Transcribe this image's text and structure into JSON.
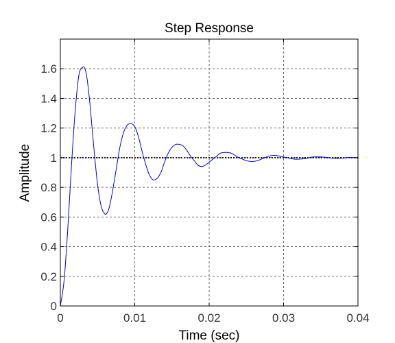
{
  "chart_data": {
    "type": "line",
    "title": "Step Response",
    "xlabel": "Time (sec)",
    "ylabel": "Amplitude",
    "xlim": [
      0,
      0.04
    ],
    "ylim": [
      0,
      1.8
    ],
    "x_ticks": [
      0,
      0.01,
      0.02,
      0.03,
      0.04
    ],
    "x_tick_labels": [
      "0",
      "0.01",
      "0.02",
      "0.03",
      "0.04"
    ],
    "y_ticks": [
      0,
      0.2,
      0.4,
      0.6,
      0.8,
      1.0,
      1.2,
      1.4,
      1.6
    ],
    "y_tick_labels": [
      "0",
      "0.2",
      "0.4",
      "0.6",
      "0.8",
      "1",
      "1.2",
      "1.4",
      "1.6"
    ],
    "grid": true,
    "grid_style": "dashed",
    "series": [
      {
        "color": "#0000cc",
        "style": "solid",
        "x": [
          0,
          0.0005,
          0.001,
          0.0015,
          0.002,
          0.0025,
          0.003,
          0.0033,
          0.0036,
          0.004,
          0.0045,
          0.005,
          0.0055,
          0.006,
          0.0063,
          0.0066,
          0.007,
          0.0075,
          0.008,
          0.0085,
          0.009,
          0.0095,
          0.01,
          0.0105,
          0.011,
          0.0115,
          0.012,
          0.0125,
          0.013,
          0.0133,
          0.0136,
          0.014,
          0.0145,
          0.015,
          0.0155,
          0.016,
          0.0165,
          0.017,
          0.0175,
          0.018,
          0.0185,
          0.019,
          0.0195,
          0.02,
          0.0205,
          0.021,
          0.0215,
          0.022,
          0.0225,
          0.023,
          0.0235,
          0.024,
          0.0245,
          0.025,
          0.0255,
          0.026,
          0.0265,
          0.027,
          0.0275,
          0.028,
          0.0285,
          0.029,
          0.0295,
          0.03,
          0.0305,
          0.031,
          0.0315,
          0.032,
          0.033,
          0.034,
          0.035,
          0.036,
          0.037,
          0.038,
          0.039,
          0.04
        ],
        "y": [
          0,
          0.17,
          0.52,
          0.95,
          1.32,
          1.56,
          1.61,
          1.6,
          1.53,
          1.35,
          1.07,
          0.82,
          0.67,
          0.62,
          0.63,
          0.67,
          0.77,
          0.92,
          1.07,
          1.17,
          1.22,
          1.23,
          1.21,
          1.14,
          1.04,
          0.95,
          0.88,
          0.85,
          0.86,
          0.88,
          0.91,
          0.97,
          1.03,
          1.07,
          1.09,
          1.09,
          1.08,
          1.05,
          1.01,
          0.98,
          0.95,
          0.94,
          0.95,
          0.97,
          0.99,
          1.01,
          1.03,
          1.035,
          1.035,
          1.03,
          1.015,
          1.0,
          0.99,
          0.98,
          0.975,
          0.975,
          0.98,
          0.99,
          1.0,
          1.01,
          1.015,
          1.015,
          1.01,
          1.005,
          1.0,
          0.995,
          0.99,
          0.99,
          0.995,
          1.005,
          1.005,
          1.0,
          0.995,
          0.998,
          1.002,
          1.0
        ]
      }
    ],
    "reference_line": {
      "y": 1,
      "color": "#000000",
      "style": "dotted"
    }
  }
}
